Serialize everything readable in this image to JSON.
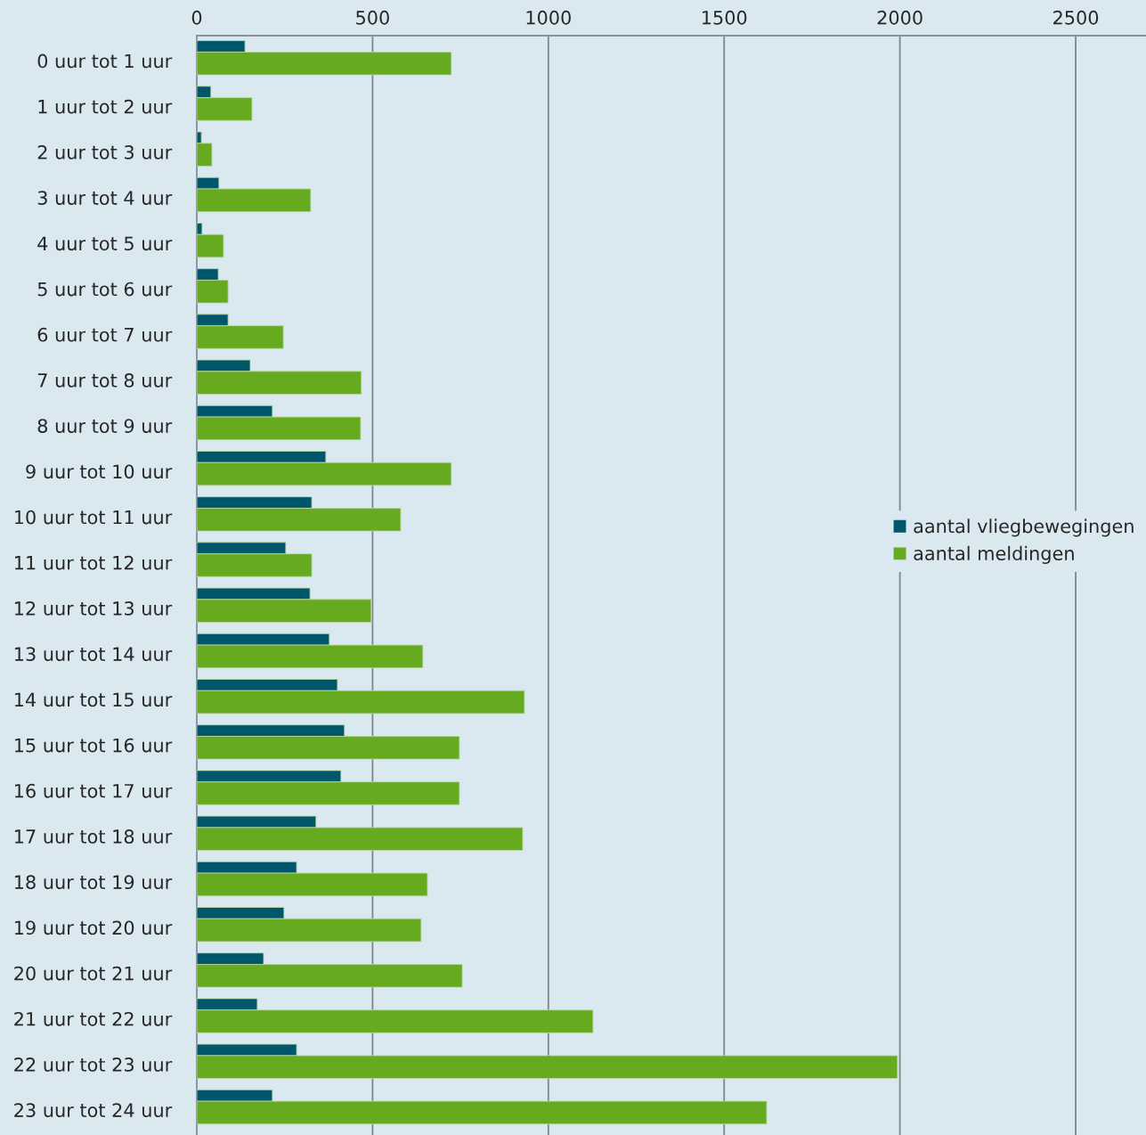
{
  "chart_data": {
    "type": "bar",
    "orientation": "horizontal",
    "categories": [
      "0 uur tot 1 uur",
      "1 uur tot 2 uur",
      "2 uur tot 3 uur",
      "3 uur tot 4 uur",
      "4 uur tot 5 uur",
      "5 uur tot 6 uur",
      "6 uur tot 7 uur",
      "7 uur tot 8 uur",
      "8 uur tot 9 uur",
      "9 uur tot 10 uur",
      "10 uur tot 11 uur",
      "11 uur tot 12 uur",
      "12 uur tot 13 uur",
      "13 uur tot 14 uur",
      "14 uur tot 15 uur",
      "15 uur tot 16 uur",
      "16 uur tot 17 uur",
      "17 uur tot 18 uur",
      "18 uur tot 19 uur",
      "19 uur tot 20 uur",
      "20 uur tot 21 uur",
      "21 uur tot 22 uur",
      "22 uur tot 23 uur",
      "23 uur tot 24 uur"
    ],
    "series": [
      {
        "name": "aantal vliegbewegingen",
        "color": "#00576b",
        "values": [
          137,
          40,
          13,
          63,
          15,
          61,
          89,
          152,
          215,
          367,
          327,
          253,
          322,
          377,
          400,
          420,
          410,
          339,
          284,
          248,
          190,
          172,
          284,
          215
        ]
      },
      {
        "name": "aantal meldingen",
        "color": "#66aa1f",
        "values": [
          724,
          157,
          43,
          324,
          76,
          89,
          246,
          468,
          466,
          724,
          580,
          327,
          496,
          643,
          932,
          747,
          747,
          927,
          656,
          638,
          755,
          1127,
          1993,
          1621
        ]
      }
    ],
    "xlim": [
      0,
      2700
    ],
    "xticks": [
      0,
      500,
      1000,
      1500,
      2000,
      2500
    ],
    "grid": "x",
    "legend": "right"
  }
}
